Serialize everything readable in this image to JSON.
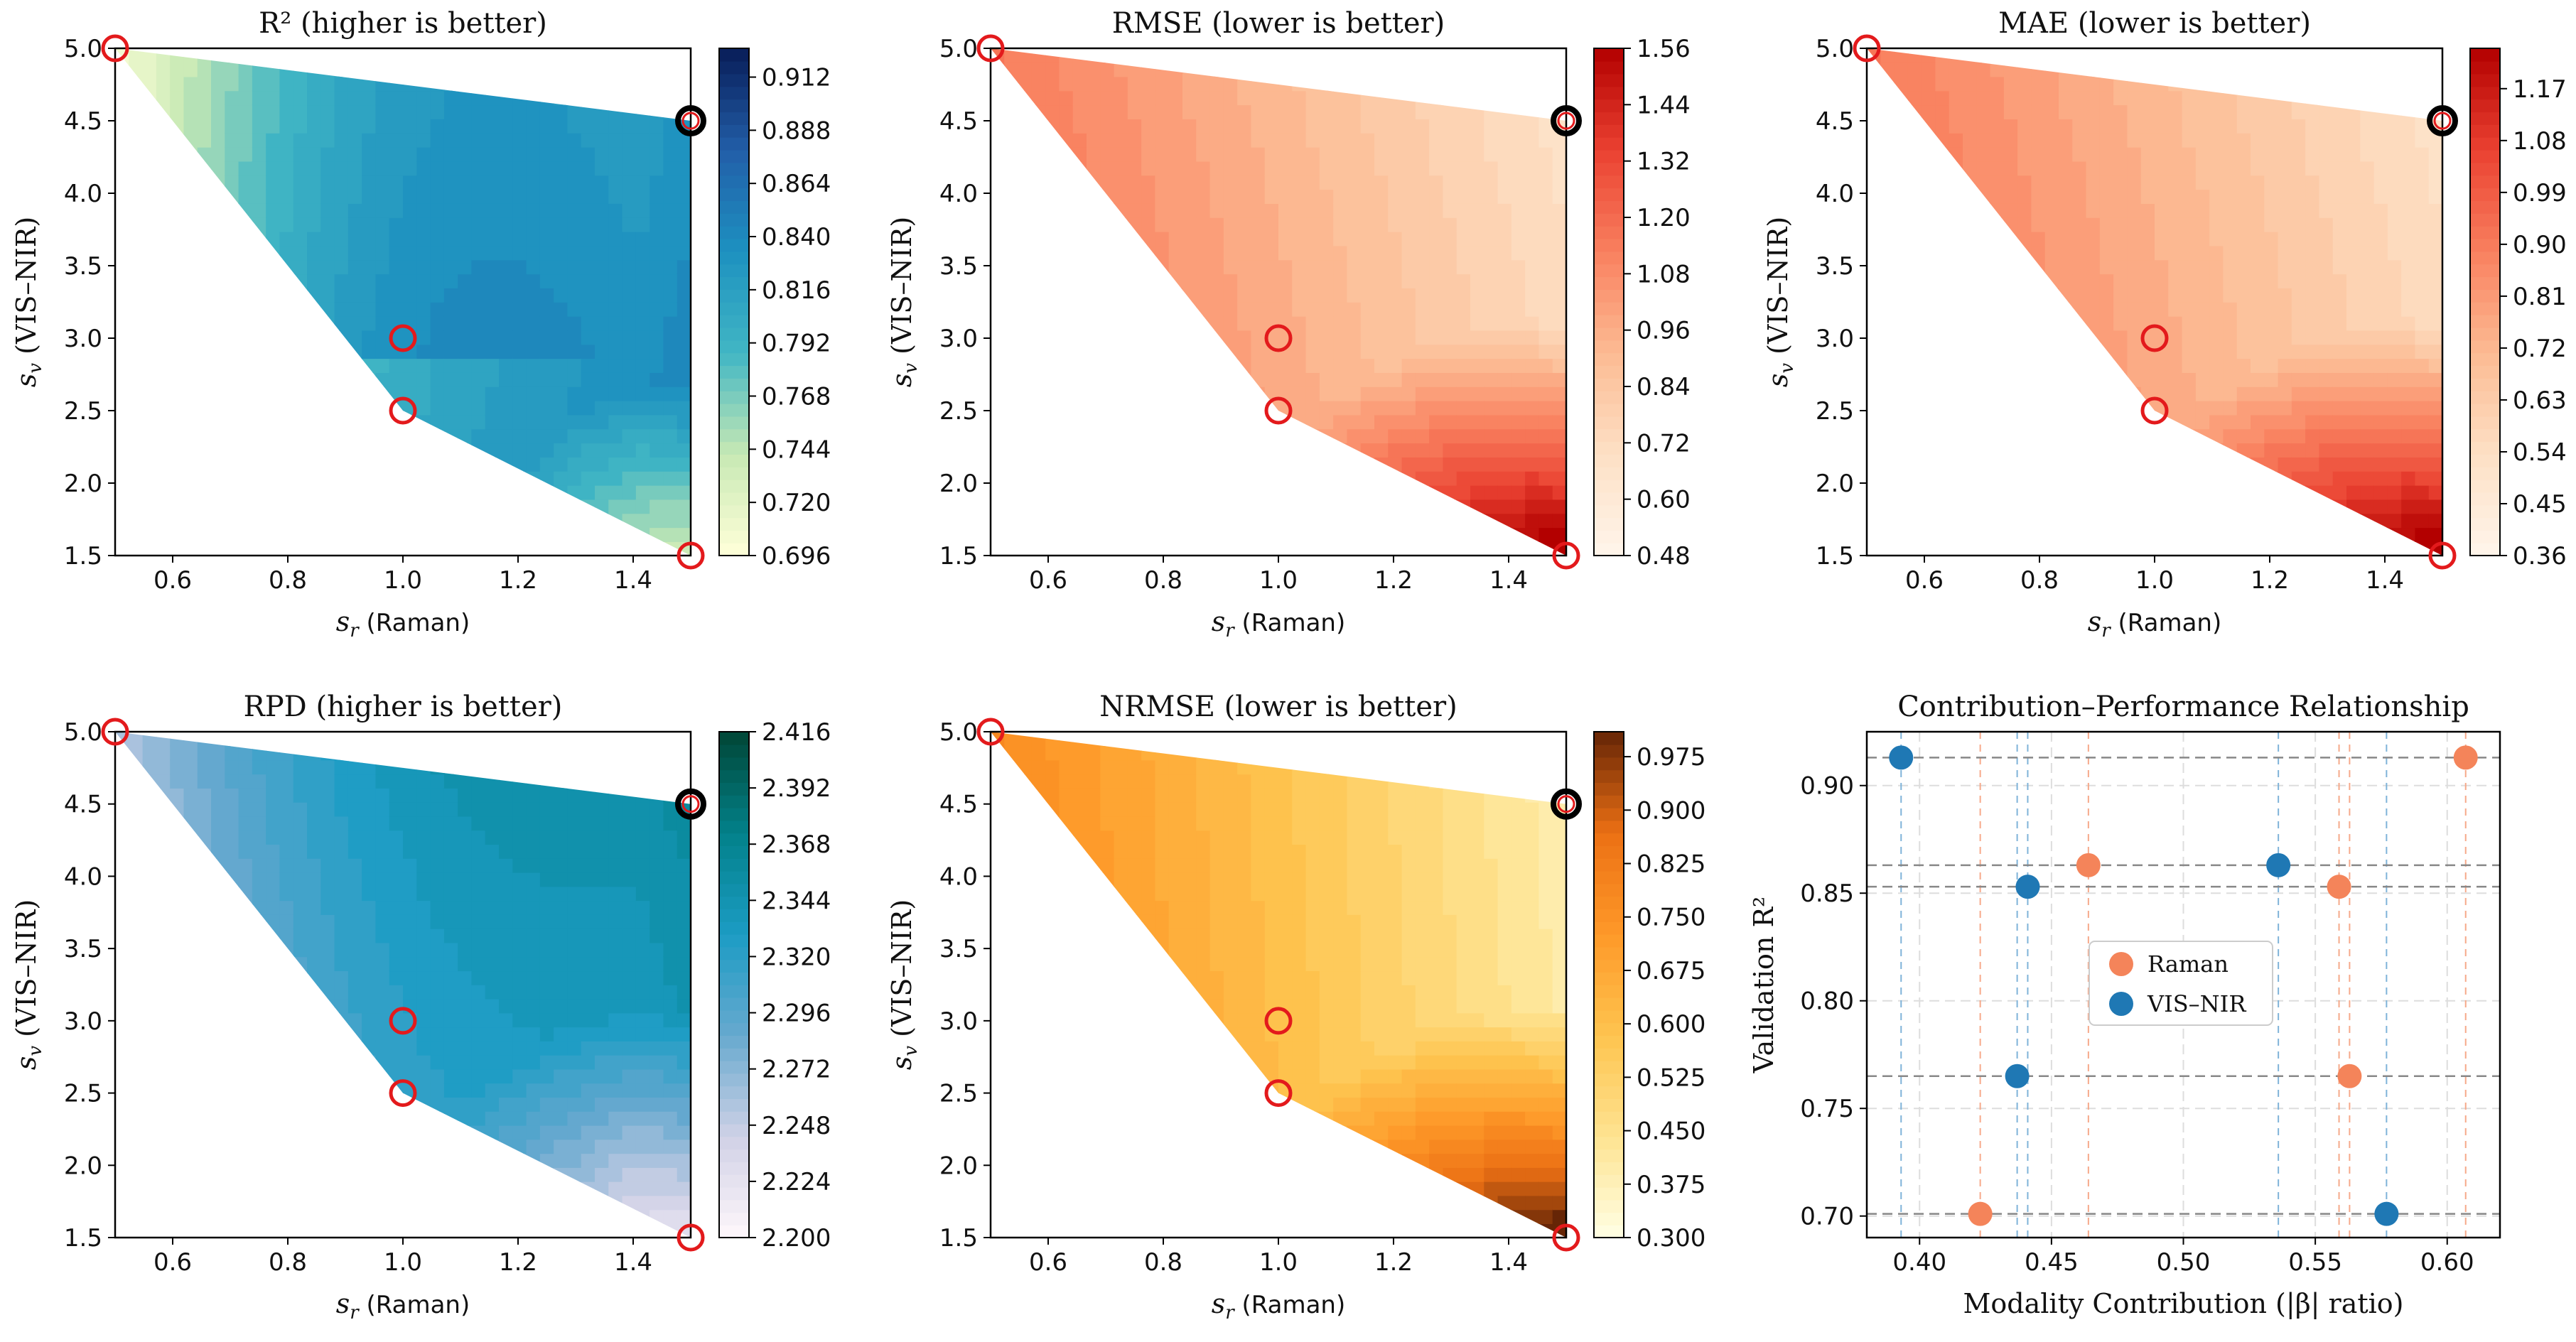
{
  "chart_data": [
    {
      "type": "heatmap",
      "title": "R² (higher is better)",
      "xlabel_sym": "s",
      "xlabel_sub": "r",
      "xlabel_rest": " (Raman)",
      "ylabel_sym": "s",
      "ylabel_sub": "v",
      "ylabel_rest": " (VIS–NIR)",
      "xlim": [
        0.5,
        1.5
      ],
      "ylim": [
        1.5,
        5.0
      ],
      "xticks": [
        "0.6",
        "0.8",
        "1.0",
        "1.2",
        "1.4"
      ],
      "yticks": [
        "1.5",
        "2.0",
        "2.5",
        "3.0",
        "3.5",
        "4.0",
        "4.5",
        "5.0"
      ],
      "colorbar_ticks": [
        "0.696",
        "0.720",
        "0.744",
        "0.768",
        "0.792",
        "0.816",
        "0.840",
        "0.864",
        "0.888",
        "0.912"
      ],
      "colorbar_range": [
        0.696,
        0.925
      ],
      "colormap": [
        "#ffffd9",
        "#c7e9b4",
        "#41b6c4",
        "#1d91c0",
        "#225ea8",
        "#081d58"
      ],
      "markers_red": [
        [
          0.5,
          5.0
        ],
        [
          1.0,
          3.0
        ],
        [
          1.0,
          2.5
        ],
        [
          1.5,
          1.5
        ]
      ],
      "markers_black": [
        [
          1.5,
          4.5
        ]
      ]
    },
    {
      "type": "heatmap",
      "title": "RMSE (lower is better)",
      "xlabel_sym": "s",
      "xlabel_sub": "r",
      "xlabel_rest": " (Raman)",
      "ylabel_sym": "s",
      "ylabel_sub": "v",
      "ylabel_rest": " (VIS–NIR)",
      "xlim": [
        0.5,
        1.5
      ],
      "ylim": [
        1.5,
        5.0
      ],
      "xticks": [
        "0.6",
        "0.8",
        "1.0",
        "1.2",
        "1.4"
      ],
      "yticks": [
        "1.5",
        "2.0",
        "2.5",
        "3.0",
        "3.5",
        "4.0",
        "4.5",
        "5.0"
      ],
      "colorbar_ticks": [
        "0.48",
        "0.60",
        "0.72",
        "0.84",
        "0.96",
        "1.08",
        "1.20",
        "1.32",
        "1.44",
        "1.56"
      ],
      "colorbar_range": [
        0.48,
        1.56
      ],
      "colormap": [
        "#fff5eb",
        "#fde0c5",
        "#fcbb93",
        "#f9805f",
        "#ea4131",
        "#b30000"
      ],
      "markers_red": [
        [
          0.5,
          5.0
        ],
        [
          1.0,
          3.0
        ],
        [
          1.0,
          2.5
        ],
        [
          1.5,
          1.5
        ]
      ],
      "markers_black": [
        [
          1.5,
          4.5
        ]
      ]
    },
    {
      "type": "heatmap",
      "title": "MAE (lower is better)",
      "xlabel_sym": "s",
      "xlabel_sub": "r",
      "xlabel_rest": " (Raman)",
      "ylabel_sym": "s",
      "ylabel_sub": "v",
      "ylabel_rest": " (VIS–NIR)",
      "xlim": [
        0.5,
        1.5
      ],
      "ylim": [
        1.5,
        5.0
      ],
      "xticks": [
        "0.6",
        "0.8",
        "1.0",
        "1.2",
        "1.4"
      ],
      "yticks": [
        "1.5",
        "2.0",
        "2.5",
        "3.0",
        "3.5",
        "4.0",
        "4.5",
        "5.0"
      ],
      "colorbar_ticks": [
        "0.36",
        "0.45",
        "0.54",
        "0.63",
        "0.72",
        "0.81",
        "0.90",
        "0.99",
        "1.08",
        "1.17"
      ],
      "colorbar_range": [
        0.36,
        1.24
      ],
      "colormap": [
        "#fff5eb",
        "#fde0c5",
        "#fcbb93",
        "#f9805f",
        "#ea4131",
        "#b30000"
      ],
      "markers_red": [
        [
          0.5,
          5.0
        ],
        [
          1.0,
          3.0
        ],
        [
          1.0,
          2.5
        ],
        [
          1.5,
          1.5
        ]
      ],
      "markers_black": [
        [
          1.5,
          4.5
        ]
      ]
    },
    {
      "type": "heatmap",
      "title": "RPD (higher is better)",
      "xlabel_sym": "s",
      "xlabel_sub": "r",
      "xlabel_rest": " (Raman)",
      "ylabel_sym": "s",
      "ylabel_sub": "v",
      "ylabel_rest": " (VIS–NIR)",
      "xlim": [
        0.5,
        1.5
      ],
      "ylim": [
        1.5,
        5.0
      ],
      "xticks": [
        "0.6",
        "0.8",
        "1.0",
        "1.2",
        "1.4"
      ],
      "yticks": [
        "1.5",
        "2.0",
        "2.5",
        "3.0",
        "3.5",
        "4.0",
        "4.5",
        "5.0"
      ],
      "colorbar_ticks": [
        "2.200",
        "2.224",
        "2.248",
        "2.272",
        "2.296",
        "2.320",
        "2.344",
        "2.368",
        "2.392",
        "2.416"
      ],
      "colorbar_range": [
        2.2,
        2.416
      ],
      "colormap": [
        "#fff7fb",
        "#d0d1e6",
        "#67a9cf",
        "#1c9cc4",
        "#02818a",
        "#014636"
      ],
      "markers_red": [
        [
          0.5,
          5.0
        ],
        [
          1.0,
          3.0
        ],
        [
          1.0,
          2.5
        ],
        [
          1.5,
          1.5
        ]
      ],
      "markers_black": [
        [
          1.5,
          4.5
        ]
      ]
    },
    {
      "type": "heatmap",
      "title": "NRMSE (lower is better)",
      "xlabel_sym": "s",
      "xlabel_sub": "r",
      "xlabel_rest": " (Raman)",
      "ylabel_sym": "s",
      "ylabel_sub": "v",
      "ylabel_rest": " (VIS–NIR)",
      "xlim": [
        0.5,
        1.5
      ],
      "ylim": [
        1.5,
        5.0
      ],
      "xticks": [
        "0.6",
        "0.8",
        "1.0",
        "1.2",
        "1.4"
      ],
      "yticks": [
        "1.5",
        "2.0",
        "2.5",
        "3.0",
        "3.5",
        "4.0",
        "4.5",
        "5.0"
      ],
      "colorbar_ticks": [
        "0.300",
        "0.375",
        "0.450",
        "0.525",
        "0.600",
        "0.675",
        "0.750",
        "0.825",
        "0.900",
        "0.975"
      ],
      "colorbar_range": [
        0.3,
        1.01
      ],
      "colormap": [
        "#ffffe5",
        "#fee391",
        "#fec44f",
        "#fe9929",
        "#ec7014",
        "#662506"
      ],
      "markers_red": [
        [
          0.5,
          5.0
        ],
        [
          1.0,
          3.0
        ],
        [
          1.0,
          2.5
        ],
        [
          1.5,
          1.5
        ]
      ],
      "markers_black": [
        [
          1.5,
          4.5
        ]
      ]
    },
    {
      "type": "scatter",
      "title": "Contribution–Performance Relationship",
      "xlabel": "Modality Contribution (|β| ratio)",
      "ylabel": "Validation R²",
      "xlim": [
        0.38,
        0.62
      ],
      "ylim": [
        0.69,
        0.925
      ],
      "xticks": [
        "0.40",
        "0.45",
        "0.50",
        "0.55",
        "0.60"
      ],
      "yticks": [
        "0.70",
        "0.75",
        "0.80",
        "0.85",
        "0.90"
      ],
      "series": [
        {
          "name": "Raman",
          "color": "#f4845a",
          "points": [
            [
              0.607,
              0.913
            ],
            [
              0.464,
              0.863
            ],
            [
              0.559,
              0.853
            ],
            [
              0.563,
              0.765
            ],
            [
              0.423,
              0.701
            ]
          ]
        },
        {
          "name": "VIS–NIR",
          "color": "#1f78b4",
          "points": [
            [
              0.393,
              0.913
            ],
            [
              0.536,
              0.863
            ],
            [
              0.441,
              0.853
            ],
            [
              0.437,
              0.765
            ],
            [
              0.577,
              0.701
            ]
          ]
        }
      ]
    }
  ]
}
